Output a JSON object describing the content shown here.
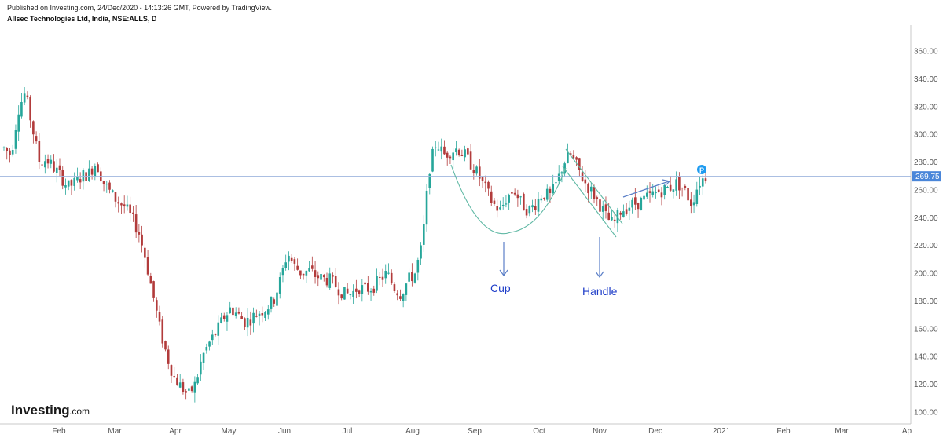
{
  "header": {
    "published": "Published on Investing.com, 24/Dec/2020 - 14:13:26 GMT, Powered by TradingView.",
    "title": "Allsec Technologies Ltd, India, NSE:ALLS, D"
  },
  "logo": {
    "main": "Investing",
    "suffix": ".com"
  },
  "chart_data": {
    "type": "candlestick",
    "y_ticks": [
      "100.00",
      "120.00",
      "140.00",
      "160.00",
      "180.00",
      "200.00",
      "220.00",
      "240.00",
      "260.00",
      "280.00",
      "300.00",
      "320.00",
      "340.00",
      "360.00"
    ],
    "y_tick_values": [
      100,
      120,
      140,
      160,
      180,
      200,
      220,
      240,
      260,
      280,
      300,
      320,
      340,
      360
    ],
    "x_ticks": [
      "Feb",
      "Mar",
      "Apr",
      "May",
      "Jun",
      "Jul",
      "Aug",
      "Sep",
      "Oct",
      "Nov",
      "Dec",
      "2021",
      "Feb",
      "Mar",
      "Ap"
    ],
    "current_price": "269.75",
    "current_price_value": 269.75,
    "annotations": {
      "cup": "Cup",
      "handle": "Handle",
      "marker": "P"
    },
    "colors": {
      "up": "#26a69a",
      "down": "#b23b3b",
      "pattern": "#5fb8a4",
      "arrow": "#5b7fc7",
      "price_line": "#9fb6de",
      "price_tag": "#4a86d9"
    },
    "path": [
      290,
      285,
      318,
      330,
      305,
      280,
      282,
      276,
      270,
      262,
      265,
      270,
      272,
      280,
      266,
      258,
      252,
      248,
      240,
      230,
      210,
      185,
      160,
      140,
      125,
      118,
      112,
      120,
      140,
      150,
      158,
      168,
      175,
      170,
      165,
      168,
      172,
      175,
      180,
      195,
      215,
      205,
      200,
      202,
      198,
      196,
      195,
      190,
      185,
      185,
      190,
      188,
      190,
      195,
      200,
      190,
      185,
      195,
      200,
      220,
      275,
      295,
      285,
      288,
      290,
      285,
      278,
      270,
      260,
      250,
      245,
      255,
      260,
      250,
      245,
      250,
      258,
      255,
      265,
      280,
      285,
      275,
      265,
      258,
      250,
      240,
      235,
      245,
      248,
      250,
      252,
      255,
      258,
      260,
      262,
      265,
      260,
      250,
      265,
      270
    ],
    "pattern_lines": {
      "cup_curve": "Sep–Oct rounded bottom",
      "handle_channel": "Oct–Nov descending channel"
    }
  }
}
